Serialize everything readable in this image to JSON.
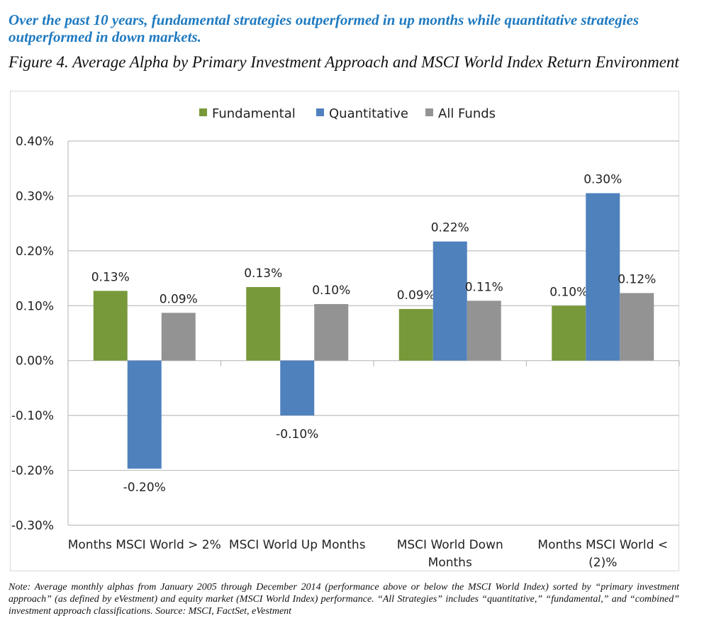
{
  "headline": "Over the past 10 years, fundamental strategies outperformed in up months while quantitative strategies outperformed in down markets.",
  "figure_title": "Figure 4. Average Alpha by Primary Investment Approach and MSCI World Index Return Environment",
  "note": "Note: Average monthly alphas from January 2005 through December 2014 (performance above or below the MSCI World Index) sorted by “primary investment approach” (as defined by eVestment) and equity market (MSCI World Index) performance. “All Strategies” includes “quantitative,” “fundamental,” and “combined” investment approach classifications. Source: MSCI, FactSet, eVestment",
  "chart_data": {
    "type": "bar",
    "categories": [
      [
        "Months MSCI World > 2%"
      ],
      [
        "MSCI World Up Months"
      ],
      [
        "MSCI World Down",
        "Months"
      ],
      [
        "Months MSCI World <",
        "(2)%"
      ]
    ],
    "series": [
      {
        "name": "Fundamental",
        "color": "#77993a",
        "values": [
          0.127,
          0.134,
          0.094,
          0.1
        ],
        "labels": [
          "0.13%",
          "0.13%",
          "0.09%",
          "0.10%"
        ]
      },
      {
        "name": "Quantitative",
        "color": "#4f81bd",
        "values": [
          -0.197,
          -0.1,
          0.217,
          0.305
        ],
        "labels": [
          "-0.20%",
          "-0.10%",
          "0.22%",
          "0.30%"
        ]
      },
      {
        "name": "All Funds",
        "color": "#939393",
        "values": [
          0.087,
          0.103,
          0.109,
          0.123
        ],
        "labels": [
          "0.09%",
          "0.10%",
          "0.11%",
          "0.12%"
        ]
      }
    ],
    "ylim": [
      -0.3,
      0.4
    ],
    "yticks": [
      "0.40%",
      "0.30%",
      "0.20%",
      "0.10%",
      "0.00%",
      "-0.10%",
      "-0.20%",
      "-0.30%"
    ],
    "ytick_values": [
      0.4,
      0.3,
      0.2,
      0.1,
      0.0,
      -0.1,
      -0.2,
      -0.3
    ],
    "grid": true,
    "legend": "top-center"
  }
}
